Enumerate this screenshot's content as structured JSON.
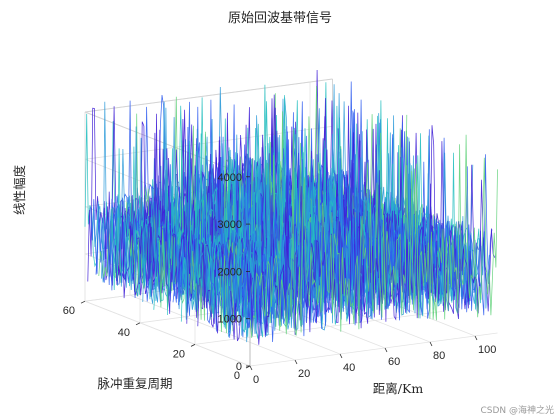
{
  "chart_data": {
    "type": "surface",
    "title": "原始回波基带信号",
    "xlabel": "距离/Km",
    "ylabel": "脉冲重复周期",
    "zlabel": "线性幅度",
    "xlim": [
      0,
      110
    ],
    "ylim": [
      0,
      60
    ],
    "zlim": [
      0,
      4000
    ],
    "xticks": [
      "0",
      "20",
      "40",
      "60",
      "80",
      "100"
    ],
    "yticks": [
      "0",
      "20",
      "40",
      "60"
    ],
    "zticks": [
      "0",
      "1000",
      "2000",
      "3000",
      "4000"
    ],
    "grid": true,
    "colormap": [
      "#3f1fd6",
      "#2f5cf0",
      "#2b9ad9",
      "#24bfc0",
      "#61d17a"
    ],
    "num_traces": 60,
    "typical_amplitude": 1800,
    "peak_amplitude": 4300
  },
  "watermark": "CSDN @海神之光"
}
